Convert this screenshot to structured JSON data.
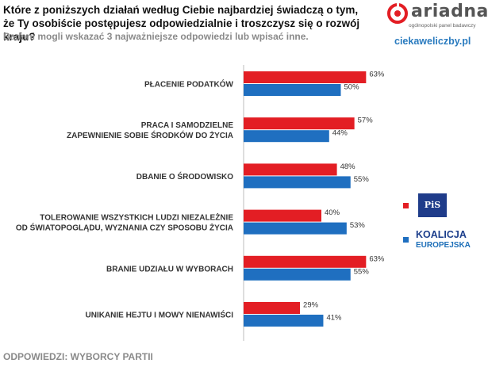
{
  "header": {
    "title_line1": "Które z poniższych działań według Ciebie najbardziej świadczą o tym,",
    "title_line2": "że Ty osobiście postępujesz odpowiedzialnie i troszczysz się o rozwój kraju?",
    "subtitle": "Badani mogli wskazać 3 najważniejsze odpowiedzi lub wpisać inne."
  },
  "brand": {
    "logo_text": "ariadna",
    "logo_tagline": "ogólnopolski panel badawczy",
    "site": "ciekaweliczby.pl"
  },
  "footer": {
    "text": "ODPOWIEDZI: WYBORCY PARTII"
  },
  "colors": {
    "pis": "#e31e24",
    "ko": "#1f6fc0"
  },
  "legend": {
    "pis_logo_text": "PiS",
    "ko_line1": "KOALICJA",
    "ko_line2": "EUROPEJSKA"
  },
  "chart_data": {
    "type": "bar",
    "orientation": "horizontal",
    "categories": [
      [
        "PŁACENIE  PODATKÓW"
      ],
      [
        "PRACA  I SAMODZIELNE",
        "ZAPEWNIENIE SOBIE ŚRODKÓW DO ŻYCIA"
      ],
      [
        "DBANIE O ŚRODOWISKO"
      ],
      [
        "TOLEROWANIE WSZYSTKICH LUDZI NIEZALEŻNIE",
        "OD ŚWIATOPOGLĄDU, WYZNANIA CZY SPOSOBU ŻYCIA"
      ],
      [
        "BRANIE UDZIAŁU  W WYBORACH"
      ],
      [
        "UNIKANIE HEJTU I MOWY NIENAWIŚCI"
      ]
    ],
    "series": [
      {
        "name": "PiS",
        "values": [
          63,
          57,
          48,
          40,
          63,
          29
        ]
      },
      {
        "name": "Koalicja Europejska",
        "values": [
          50,
          44,
          55,
          53,
          55,
          41
        ]
      }
    ],
    "value_suffix": "%",
    "xlim": [
      0,
      100
    ]
  }
}
